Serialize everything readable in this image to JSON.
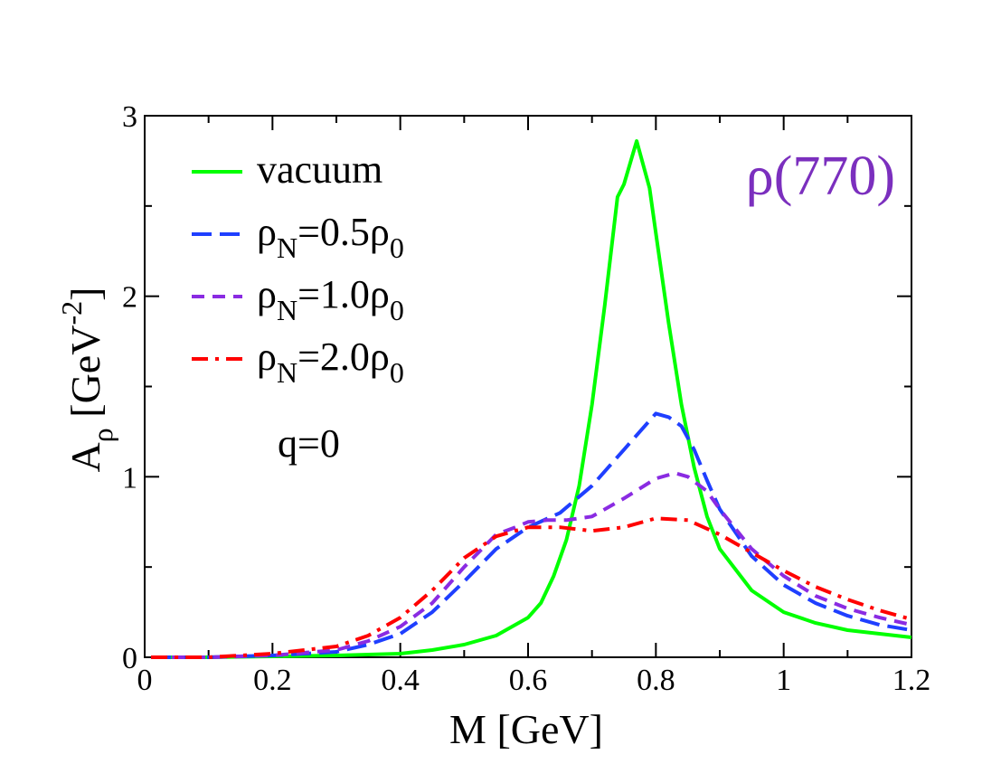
{
  "chart_data": {
    "type": "line",
    "title": "ρ(770)",
    "title_color": "#7b2fbe",
    "xlabel": "M [GeV]",
    "ylabel": {
      "base": "A",
      "sub": "ρ",
      "unit_pre": "[GeV",
      "unit_sup": "-2",
      "unit_post": "]"
    },
    "xlim": [
      0,
      1.2
    ],
    "ylim": [
      0,
      3
    ],
    "x_ticks": [
      0,
      0.2,
      0.4,
      0.6,
      0.8,
      1,
      1.2
    ],
    "x_tick_labels": [
      "0",
      "0.2",
      "0.4",
      "0.6",
      "0.8",
      "1",
      "1.2"
    ],
    "y_ticks": [
      0,
      1,
      2,
      3
    ],
    "y_tick_labels": [
      "0",
      "1",
      "2",
      "3"
    ],
    "grid": false,
    "legend_position": "top-left",
    "annotation": "q=0",
    "series": [
      {
        "name": "vacuum",
        "legend": {
          "pre": "vacuum",
          "sub1": "",
          "mid": "",
          "sub2": ""
        },
        "color": "#00ff00",
        "dash": "solid",
        "x": [
          0.01,
          0.1,
          0.2,
          0.3,
          0.4,
          0.45,
          0.5,
          0.55,
          0.6,
          0.62,
          0.64,
          0.66,
          0.68,
          0.7,
          0.72,
          0.74,
          0.75,
          0.77,
          0.79,
          0.8,
          0.82,
          0.84,
          0.86,
          0.88,
          0.9,
          0.95,
          1.0,
          1.05,
          1.1,
          1.15,
          1.2
        ],
        "values": [
          0.0,
          0.0,
          0.005,
          0.01,
          0.02,
          0.04,
          0.07,
          0.12,
          0.22,
          0.3,
          0.45,
          0.65,
          0.95,
          1.4,
          1.95,
          2.55,
          2.62,
          2.86,
          2.6,
          2.35,
          1.85,
          1.4,
          1.05,
          0.78,
          0.6,
          0.37,
          0.25,
          0.19,
          0.15,
          0.13,
          0.11
        ]
      },
      {
        "name": "ρN=0.5ρ0",
        "legend": {
          "pre": "ρ",
          "sub1": "N",
          "mid": "=0.5ρ",
          "sub2": "0"
        },
        "color": "#1f3fff",
        "dash": "long-dash",
        "x": [
          0.01,
          0.1,
          0.2,
          0.3,
          0.35,
          0.4,
          0.45,
          0.5,
          0.55,
          0.6,
          0.65,
          0.7,
          0.75,
          0.8,
          0.82,
          0.84,
          0.86,
          0.88,
          0.9,
          0.95,
          1.0,
          1.05,
          1.1,
          1.15,
          1.2
        ],
        "values": [
          0.0,
          0.0,
          0.01,
          0.03,
          0.07,
          0.13,
          0.25,
          0.42,
          0.6,
          0.72,
          0.8,
          0.95,
          1.15,
          1.35,
          1.33,
          1.28,
          1.15,
          0.98,
          0.82,
          0.56,
          0.4,
          0.3,
          0.23,
          0.18,
          0.15
        ]
      },
      {
        "name": "ρN=1.0ρ0",
        "legend": {
          "pre": "ρ",
          "sub1": "N",
          "mid": "=1.0ρ",
          "sub2": "0"
        },
        "color": "#8a2be2",
        "dash": "dash",
        "x": [
          0.01,
          0.1,
          0.2,
          0.3,
          0.35,
          0.4,
          0.45,
          0.5,
          0.55,
          0.58,
          0.6,
          0.63,
          0.66,
          0.7,
          0.75,
          0.8,
          0.83,
          0.85,
          0.88,
          0.9,
          0.95,
          1.0,
          1.05,
          1.1,
          1.15,
          1.2
        ],
        "values": [
          0.0,
          0.0,
          0.01,
          0.04,
          0.09,
          0.17,
          0.3,
          0.5,
          0.68,
          0.72,
          0.75,
          0.76,
          0.76,
          0.78,
          0.88,
          0.99,
          1.02,
          1.0,
          0.92,
          0.82,
          0.6,
          0.45,
          0.34,
          0.27,
          0.22,
          0.18
        ]
      },
      {
        "name": "ρN=2.0ρ0",
        "legend": {
          "pre": "ρ",
          "sub1": "N",
          "mid": "=2.0ρ",
          "sub2": "0"
        },
        "color": "#ff0000",
        "dash": "dash-dot",
        "x": [
          0.01,
          0.1,
          0.2,
          0.3,
          0.35,
          0.4,
          0.45,
          0.5,
          0.55,
          0.6,
          0.65,
          0.7,
          0.75,
          0.8,
          0.85,
          0.9,
          0.95,
          1.0,
          1.05,
          1.1,
          1.15,
          1.2
        ],
        "values": [
          0.0,
          0.0,
          0.02,
          0.06,
          0.12,
          0.22,
          0.37,
          0.55,
          0.67,
          0.72,
          0.72,
          0.7,
          0.72,
          0.77,
          0.76,
          0.68,
          0.58,
          0.48,
          0.39,
          0.32,
          0.26,
          0.21
        ]
      }
    ]
  }
}
